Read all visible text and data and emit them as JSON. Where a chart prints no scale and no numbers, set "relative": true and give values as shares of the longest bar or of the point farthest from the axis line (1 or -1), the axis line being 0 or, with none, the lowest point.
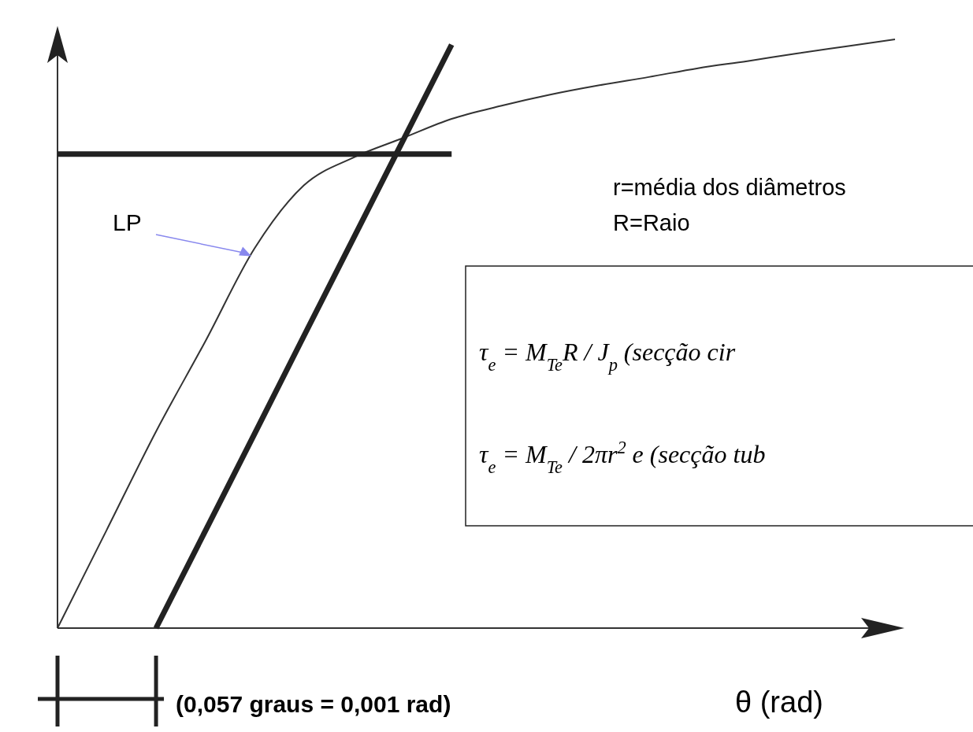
{
  "chart_data": {
    "type": "line",
    "relative": true,
    "xlabel": "θ (rad)",
    "categories": [
      null,
      null,
      null,
      null,
      null,
      null,
      null,
      null,
      null,
      null,
      null,
      null,
      null,
      null,
      null,
      null,
      null,
      null
    ],
    "marker": "none",
    "line_style": "solid",
    "series": [
      {
        "color": "#333333",
        "values": [
          0,
          0.167,
          0.334,
          0.487,
          0.645,
          0.752,
          0.799,
          0.832,
          0.865,
          0.887,
          0.906,
          0.922,
          0.936,
          0.951,
          0.963,
          0.976,
          0.988,
          1
        ]
      },
      {
        "color": "#222222",
        "values": [
          null,
          null,
          0,
          0.165,
          0.33,
          0.496,
          0.661,
          0.826,
          0.991,
          null,
          null,
          null,
          null,
          null,
          null,
          null,
          null,
          null
        ]
      },
      {
        "color": "#222222",
        "values": [
          0.805,
          0.805,
          0.805,
          0.805,
          0.805,
          0.805,
          0.805,
          0.805,
          0.805,
          null,
          null,
          null,
          null,
          null,
          null,
          null,
          null,
          null
        ]
      }
    ],
    "annotations": [
      "(0,057 graus = 0,001 rad)",
      "r=média dos diâmetros",
      "R=Raio",
      "τ$_{e}$ = M$_{Te}$R / J$_{p}$   (secção cir",
      "τ$_{e}$ = M$_{Te}$ / 2πr$^{2}$ e   (secção tub",
      "LP"
    ]
  }
}
